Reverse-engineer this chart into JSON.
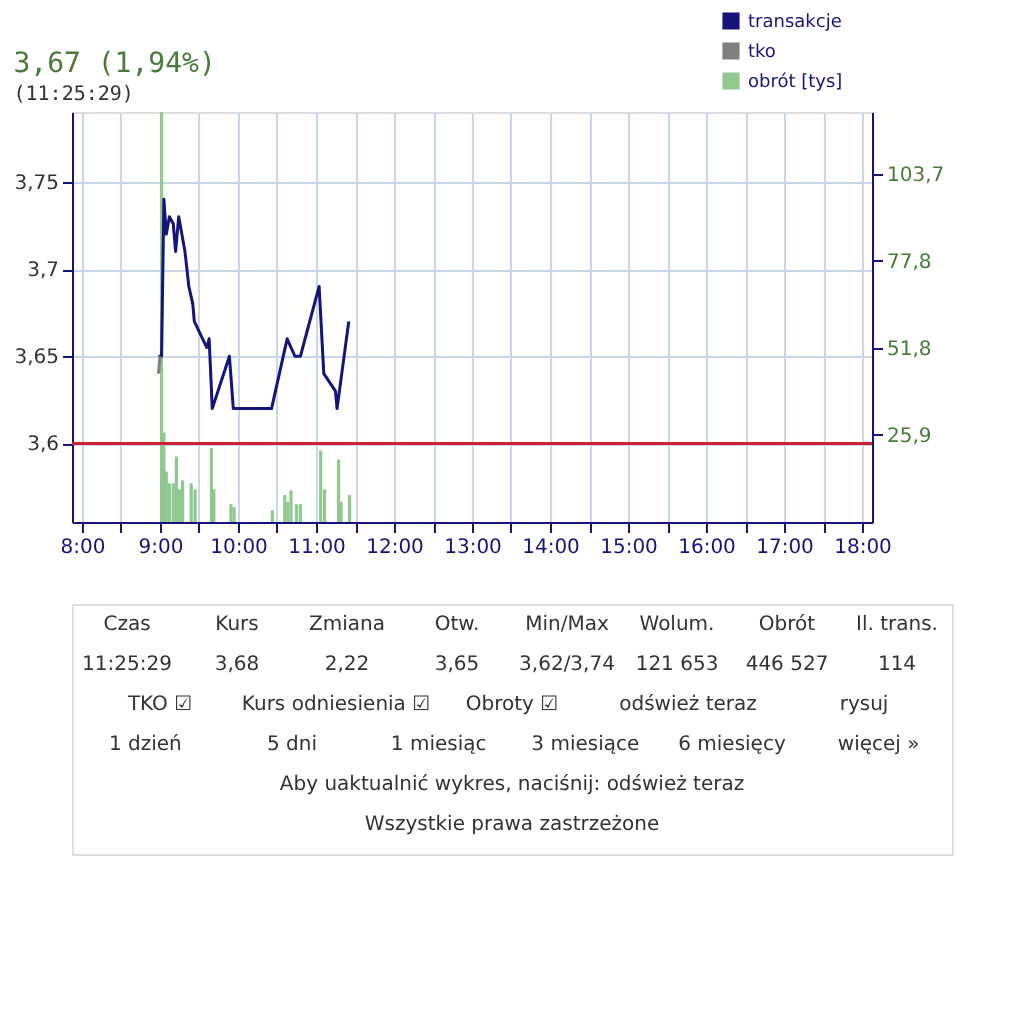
{
  "chart_data": {
    "type": "line",
    "title": "3,67  (1,94%)",
    "subtitle": "(11:25:29)",
    "xlim": [
      8,
      18
    ],
    "xticks": [
      {
        "value": 8,
        "label": "8:00"
      },
      {
        "value": 8.5,
        "label": null
      },
      {
        "value": 9,
        "label": "9:00"
      },
      {
        "value": 9.5,
        "label": null
      },
      {
        "value": 10,
        "label": "10:00"
      },
      {
        "value": 10.5,
        "label": null
      },
      {
        "value": 11,
        "label": "11:00"
      },
      {
        "value": 11.5,
        "label": null
      },
      {
        "value": 12,
        "label": "12:00"
      },
      {
        "value": 12.5,
        "label": null
      },
      {
        "value": 13,
        "label": "13:00"
      },
      {
        "value": 13.5,
        "label": null
      },
      {
        "value": 14,
        "label": "14:00"
      },
      {
        "value": 14.5,
        "label": null
      },
      {
        "value": 15,
        "label": "15:00"
      },
      {
        "value": 15.5,
        "label": null
      },
      {
        "value": 16,
        "label": "16:00"
      },
      {
        "value": 16.5,
        "label": null
      },
      {
        "value": 17,
        "label": "17:00"
      },
      {
        "value": 17.5,
        "label": null
      },
      {
        "value": 18,
        "label": "18:00"
      }
    ],
    "ylim": [
      3.555,
      3.79
    ],
    "yticks": [
      {
        "value": 3.6,
        "label": "3,6"
      },
      {
        "value": 3.65,
        "label": "3,65"
      },
      {
        "value": 3.7,
        "label": "3,7"
      },
      {
        "value": 3.75,
        "label": "3,75"
      }
    ],
    "y2lim": [
      0,
      122
    ],
    "y2ticks": [
      {
        "value": 25.9,
        "label": "25,9"
      },
      {
        "value": 51.8,
        "label": "51,8"
      },
      {
        "value": 77.8,
        "label": "77,8"
      },
      {
        "value": 103.7,
        "label": "103,7"
      }
    ],
    "grid": true,
    "legend": "top right",
    "line_style": "solid",
    "marker": "none",
    "ref_lines": [
      {
        "axis": "y",
        "value": 3.6,
        "color": "#cc2233"
      }
    ],
    "series": [
      {
        "name": "transakcje",
        "color": "#14147a",
        "x": [
          8.98,
          9.02,
          9.05,
          9.08,
          9.12,
          9.17,
          9.2,
          9.24,
          9.32,
          9.37,
          9.42,
          9.44,
          9.6,
          9.63,
          9.67,
          9.89,
          9.94,
          10.43,
          10.63,
          10.73,
          10.8,
          11.04,
          11.1,
          11.25,
          11.27,
          11.42
        ],
        "values": [
          3.65,
          3.65,
          3.74,
          3.72,
          3.73,
          3.726,
          3.71,
          3.73,
          3.71,
          3.69,
          3.68,
          3.67,
          3.655,
          3.66,
          3.62,
          3.65,
          3.62,
          3.62,
          3.66,
          3.65,
          3.65,
          3.69,
          3.64,
          3.63,
          3.62,
          3.67
        ]
      },
      {
        "name": "tko",
        "color": "#808080",
        "x": [
          8.98,
          9.0
        ],
        "values": [
          3.64,
          3.65
        ]
      },
      {
        "name": "obrót [tys]",
        "color": "#90c890",
        "type": "bar",
        "axis": "y2",
        "x": [
          9.02,
          9.05,
          9.08,
          9.12,
          9.17,
          9.21,
          9.25,
          9.29,
          9.4,
          9.45,
          9.66,
          9.69,
          9.91,
          9.95,
          10.44,
          10.6,
          10.64,
          10.68,
          10.75,
          10.8,
          11.06,
          11.11,
          11.29,
          11.32,
          11.43
        ],
        "values": [
          122,
          26.6,
          15,
          11.5,
          11.5,
          19.5,
          9.7,
          12.4,
          11.5,
          9.7,
          22,
          9.7,
          5.3,
          4.4,
          3.5,
          8,
          6,
          9.4,
          5.3,
          5.3,
          21.3,
          9.7,
          18.6,
          6,
          8
        ]
      }
    ],
    "annotations": [
      "Czas",
      "Kurs",
      "Zmiana",
      "Otw.",
      "Min/Max",
      "Wolum.",
      "Obrót",
      "Il. trans.",
      "11:25:29",
      "3,68",
      "2,22",
      "3,65",
      "3,62/3,74",
      "121 653",
      "446 527",
      "114",
      "TKO ☑",
      "Kurs odniesienia ☑",
      "Obroty ☑",
      "odśwież teraz",
      "rysuj",
      "1 dzień",
      "5 dni",
      "1 miesiąc",
      "3 miesiące",
      "6 miesięcy",
      "więcej »",
      "Aby uaktualnić wykres, naciśnij:  odśwież teraz",
      "Wszystkie prawa zastrzeżone"
    ]
  }
}
